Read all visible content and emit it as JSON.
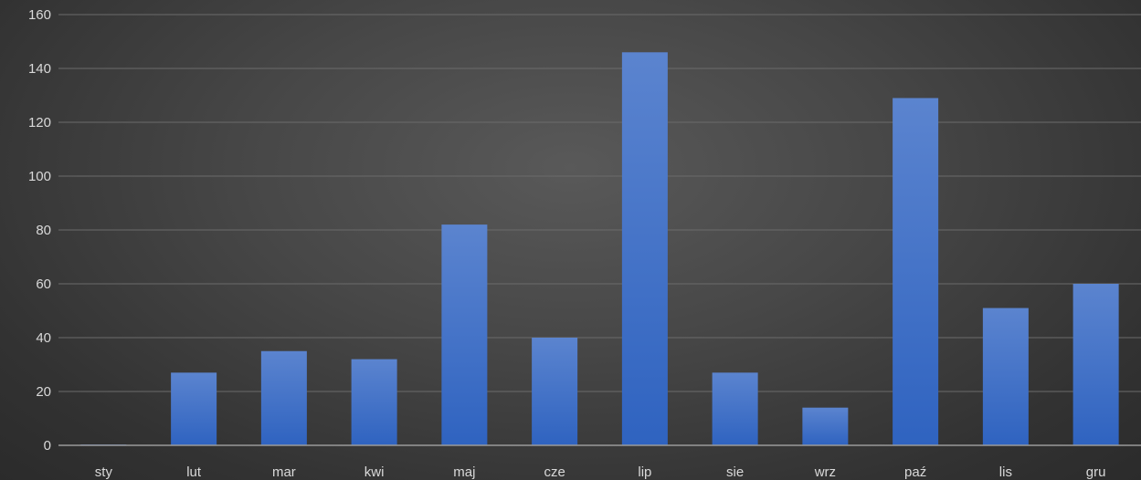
{
  "chart_data": {
    "type": "bar",
    "title": "",
    "xlabel": "",
    "ylabel": "",
    "categories": [
      "sty",
      "lut",
      "mar",
      "kwi",
      "maj",
      "cze",
      "lip",
      "sie",
      "wrz",
      "paź",
      "lis",
      "gru"
    ],
    "series": [
      {
        "values": [
          0.3,
          27,
          35,
          32,
          82,
          40,
          146,
          27,
          14,
          129,
          51,
          60
        ]
      }
    ],
    "ylim": [
      0,
      160
    ],
    "yticks": [
      0,
      20,
      40,
      60,
      80,
      100,
      120,
      140,
      160
    ],
    "grid": true,
    "legend": "none",
    "colors": {
      "bar_top": "#5b84cf",
      "bar_bottom": "#2f63c0",
      "text": "#d9d9d9",
      "grid": "#6b6b6b",
      "axis": "#9a9a9a"
    }
  }
}
